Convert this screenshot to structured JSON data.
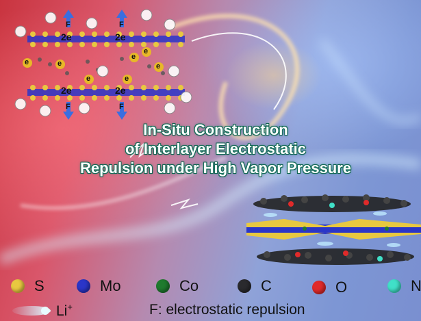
{
  "title": {
    "line1": "In-Situ Construction",
    "line2": "of Interlayer Electrostatic",
    "line3": "Repulsion under High Vapor Pressure"
  },
  "schematic": {
    "charge_top_left": "2e",
    "charge_top_right": "2e",
    "charge_bottom_left": "2e",
    "charge_bottom_right": "2e",
    "force_label": "F",
    "electron_label": "e"
  },
  "legend": {
    "items": [
      {
        "label": "S",
        "color": "#e8c840"
      },
      {
        "label": "Mo",
        "color": "#2a35c8"
      },
      {
        "label": "Co",
        "color": "#1f7a2e"
      },
      {
        "label": "C",
        "color": "#2a2a2e"
      },
      {
        "label": "O",
        "color": "#e02a2a"
      },
      {
        "label": "N",
        "color": "#40e0c8"
      }
    ],
    "li_label": "Li",
    "li_sup": "+",
    "f_label": "F: electrostatic repulsion"
  }
}
